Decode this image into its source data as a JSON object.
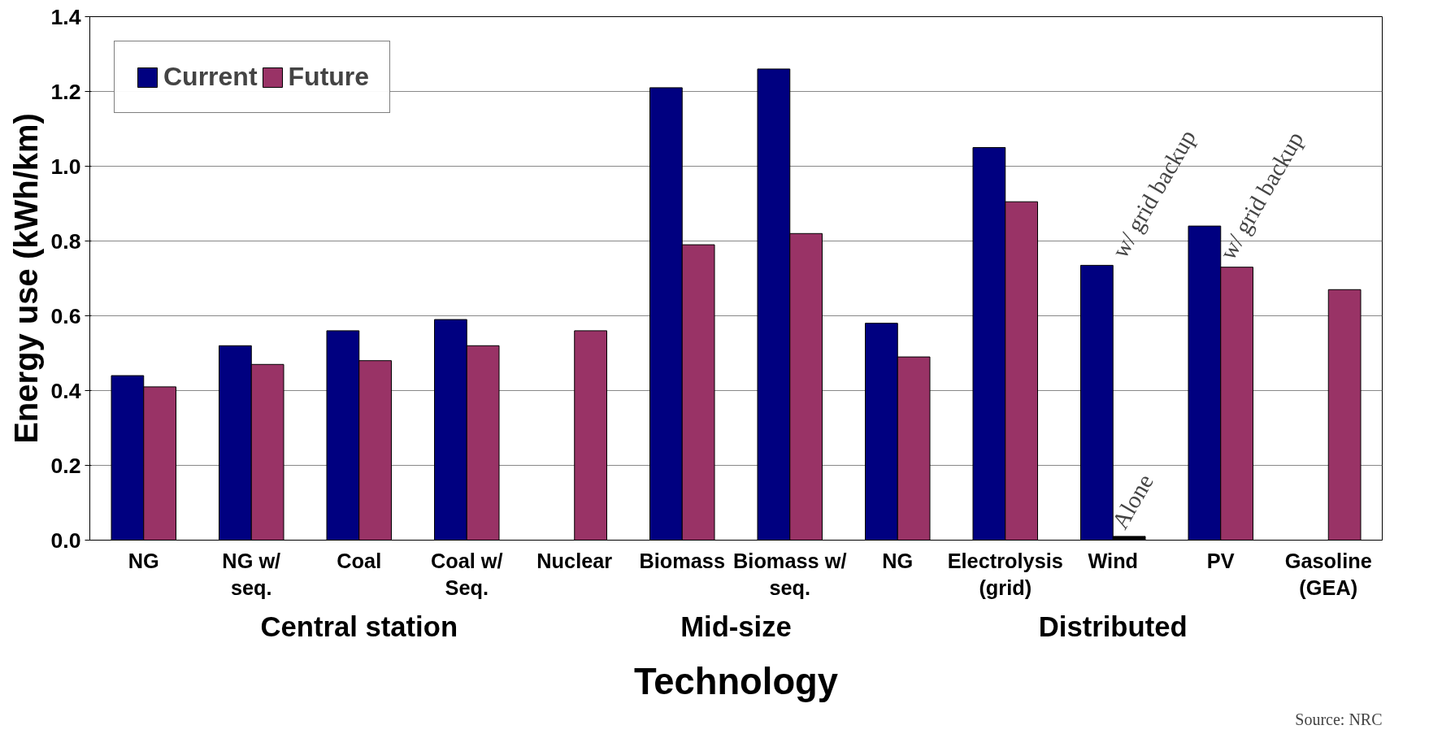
{
  "chart_data": {
    "type": "bar",
    "xlabel": "Technology",
    "ylabel": "Energy use (kWh/km)",
    "categories": [
      "NG",
      "NG w/ seq.",
      "Coal",
      "Coal w/ Seq.",
      "Nuclear",
      "Biomass",
      "Biomass w/ seq.",
      "NG",
      "Electrolysis (grid)",
      "Wind",
      "PV",
      "Gasoline (GEA)"
    ],
    "series": [
      {
        "name": "Current",
        "color": "#000080",
        "values": [
          0.44,
          0.52,
          0.56,
          0.59,
          null,
          1.21,
          1.26,
          0.58,
          1.05,
          0.735,
          0.84,
          null
        ]
      },
      {
        "name": "Future",
        "color": "#993366",
        "colors": [
          "#993366",
          "#993366",
          "#993366",
          "#993366",
          "#993366",
          "#993366",
          "#993366",
          "#993366",
          "#993366",
          "#000000",
          "#993366",
          "#993366"
        ],
        "values": [
          0.41,
          0.47,
          0.48,
          0.52,
          0.56,
          0.79,
          0.82,
          0.49,
          0.905,
          0.01,
          0.73,
          0.67
        ]
      }
    ],
    "ylim": [
      0,
      1.4
    ],
    "yticks": [
      {
        "value": 0,
        "label": "0.0"
      },
      {
        "value": 0.2,
        "label": "0.2"
      },
      {
        "value": 0.4,
        "label": "0.4"
      },
      {
        "value": 0.6,
        "label": "0.6"
      },
      {
        "value": 0.8,
        "label": "0.8"
      },
      {
        "value": 1.0,
        "label": "1.0"
      },
      {
        "value": 1.2,
        "label": "1.2"
      },
      {
        "value": 1.4,
        "label": "1.4"
      }
    ],
    "grid": "y",
    "legend": "top left",
    "annotations": [
      "Central station",
      "Mid-size",
      "Distributed",
      {
        "text": "w/ grid backup",
        "x": "Wind",
        "y": 0.735
      },
      {
        "text": "w/ grid backup",
        "x": "PV",
        "y": 0.73
      },
      {
        "text": "Alone",
        "x": "Wind",
        "y": 0.01
      },
      "Source: NRC"
    ]
  }
}
